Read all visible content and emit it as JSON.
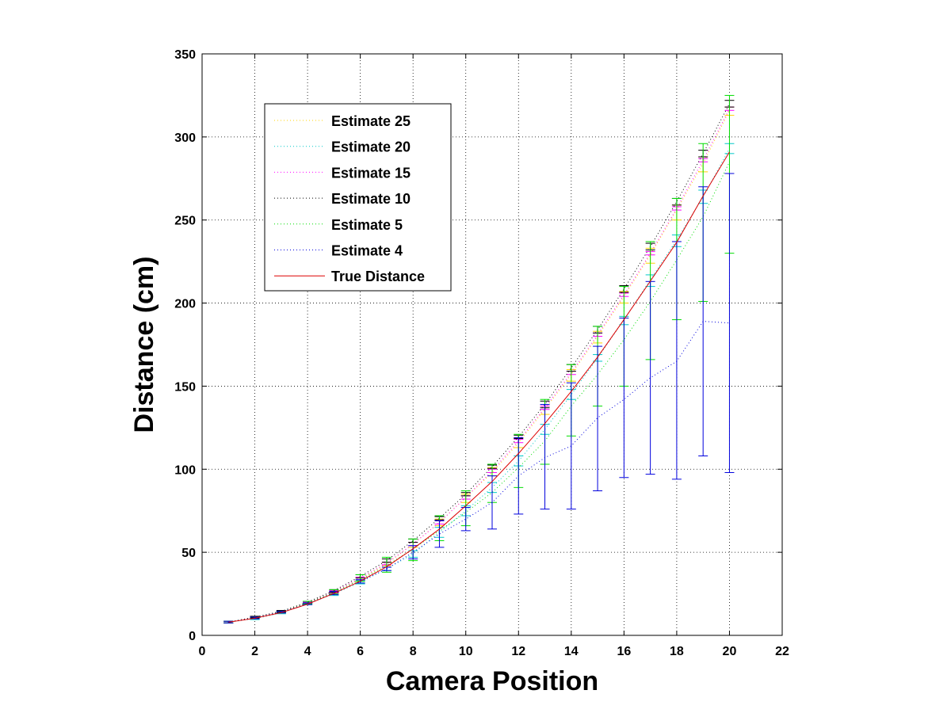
{
  "chart_data": {
    "type": "line",
    "title": "",
    "xlabel": "Camera Position",
    "ylabel": "Distance (cm)",
    "xlim": [
      0,
      22
    ],
    "ylim": [
      0,
      350
    ],
    "xticks": [
      0,
      2,
      4,
      6,
      8,
      10,
      12,
      14,
      16,
      18,
      20,
      22
    ],
    "yticks": [
      0,
      50,
      100,
      150,
      200,
      250,
      300,
      350
    ],
    "grid": true,
    "legend_position": "top-left",
    "x": [
      1,
      2,
      3,
      4,
      5,
      6,
      7,
      8,
      9,
      10,
      11,
      12,
      13,
      14,
      15,
      16,
      17,
      18,
      19,
      20
    ],
    "series": [
      {
        "name": "Estimate 25",
        "color": "#ffd200",
        "style": "dotted",
        "values": [
          8,
          10.5,
          14,
          19.5,
          26,
          34,
          43,
          55,
          68,
          83,
          98,
          116,
          136,
          157,
          180,
          204,
          229,
          256,
          284,
          316
        ],
        "err_lower": [
          7.5,
          10,
          13.5,
          19,
          25,
          33,
          42,
          53,
          66,
          80,
          96,
          113,
          133,
          153,
          176,
          200,
          224,
          250,
          279,
          313
        ],
        "err_upper": [
          8.5,
          11,
          14.5,
          20,
          27,
          35,
          44,
          56,
          70,
          85,
          101,
          119,
          138,
          160,
          183,
          207,
          233,
          259,
          288,
          318
        ]
      },
      {
        "name": "Estimate 20",
        "color": "#00c8c8",
        "style": "dotted",
        "values": [
          8,
          10,
          13.5,
          19,
          25,
          32,
          40,
          49,
          62,
          75,
          89,
          105,
          124,
          145,
          167,
          190,
          214,
          238,
          264,
          293
        ],
        "err_lower": [
          7.5,
          9.5,
          13,
          18.5,
          24,
          31,
          39,
          47,
          59,
          72,
          86,
          102,
          121,
          142,
          165,
          187,
          210,
          234,
          260,
          290
        ],
        "err_upper": [
          8.5,
          10.5,
          14,
          20,
          26,
          33,
          41,
          51,
          65,
          78,
          92,
          108,
          127,
          148,
          169,
          192,
          217,
          241,
          268,
          296
        ]
      },
      {
        "name": "Estimate 15",
        "color": "#ff00ff",
        "style": "dotted",
        "values": [
          8,
          10.5,
          14,
          19.5,
          26.5,
          34.5,
          43.5,
          55,
          68,
          83,
          99,
          117,
          137,
          158,
          181,
          205,
          230,
          257,
          286,
          317
        ],
        "err_lower": [
          7.5,
          10,
          13.5,
          19,
          25.5,
          33.5,
          42.5,
          54,
          67,
          82,
          98,
          116,
          136,
          157,
          180,
          204,
          229,
          256,
          285,
          316
        ],
        "err_upper": [
          8.5,
          11,
          14.5,
          20,
          27,
          35,
          44,
          56,
          69,
          84,
          100,
          118,
          138,
          159,
          182,
          206,
          231,
          258,
          287,
          318
        ]
      },
      {
        "name": "Estimate 10",
        "color": "#000000",
        "style": "dotted",
        "values": [
          8,
          11,
          14.5,
          20,
          27,
          35.5,
          45,
          57,
          70.5,
          85,
          101.5,
          119.5,
          139,
          161,
          184,
          208.5,
          234,
          261,
          290,
          320
        ],
        "err_lower": [
          7.5,
          10.5,
          14,
          19.5,
          26,
          34.5,
          44,
          56,
          69.5,
          84,
          100.5,
          118.5,
          137,
          159,
          182,
          206.5,
          232,
          259,
          288,
          318
        ],
        "err_upper": [
          8.5,
          11.5,
          15,
          20.5,
          27.5,
          36.5,
          46,
          58,
          71.5,
          86,
          102.5,
          120.5,
          141,
          163,
          186,
          210.5,
          236,
          263,
          292,
          322
        ]
      },
      {
        "name": "Estimate 5",
        "color": "#00dd00",
        "style": "dotted",
        "values": [
          8,
          10.5,
          14,
          19.5,
          26,
          33.5,
          42,
          52,
          63,
          74,
          86,
          101,
          117,
          138,
          157,
          178,
          201,
          226,
          252,
          285
        ],
        "err_lower": [
          7.5,
          10,
          13.5,
          19,
          25,
          32.5,
          38,
          45,
          57,
          66,
          80,
          89,
          103,
          120,
          138,
          150,
          166,
          190,
          201,
          230
        ],
        "err_upper": [
          8.5,
          11,
          14.5,
          20.5,
          27.5,
          36.5,
          47,
          58,
          72,
          87,
          103,
          121,
          142,
          163,
          186,
          210,
          237,
          263,
          296,
          325
        ]
      },
      {
        "name": "Estimate 4",
        "color": "#0000dd",
        "style": "dotted",
        "values": [
          8,
          10.5,
          14,
          19,
          25.5,
          32.5,
          40,
          50,
          61,
          70,
          80,
          96,
          107,
          114,
          131,
          142,
          155,
          165,
          189,
          188
        ],
        "err_lower": [
          7.5,
          10,
          13.5,
          18.5,
          24.5,
          31.5,
          39,
          46,
          53,
          63,
          64,
          73,
          76,
          76,
          87,
          95,
          97,
          94,
          108,
          98
        ],
        "err_upper": [
          8.5,
          11,
          14.5,
          19.5,
          26.5,
          33.5,
          41,
          54,
          69,
          77,
          96,
          119,
          139,
          152,
          174,
          191,
          213,
          237,
          270,
          278
        ]
      },
      {
        "name": "True Distance",
        "color": "#dd0000",
        "style": "solid",
        "values": [
          7.9,
          10.3,
          13.7,
          18.8,
          25.3,
          32.6,
          41.3,
          52.1,
          64.0,
          78.0,
          92.6,
          109.5,
          127.5,
          146.8,
          167.5,
          190.1,
          213.2,
          236.6,
          264.5,
          291.0
        ]
      }
    ]
  }
}
